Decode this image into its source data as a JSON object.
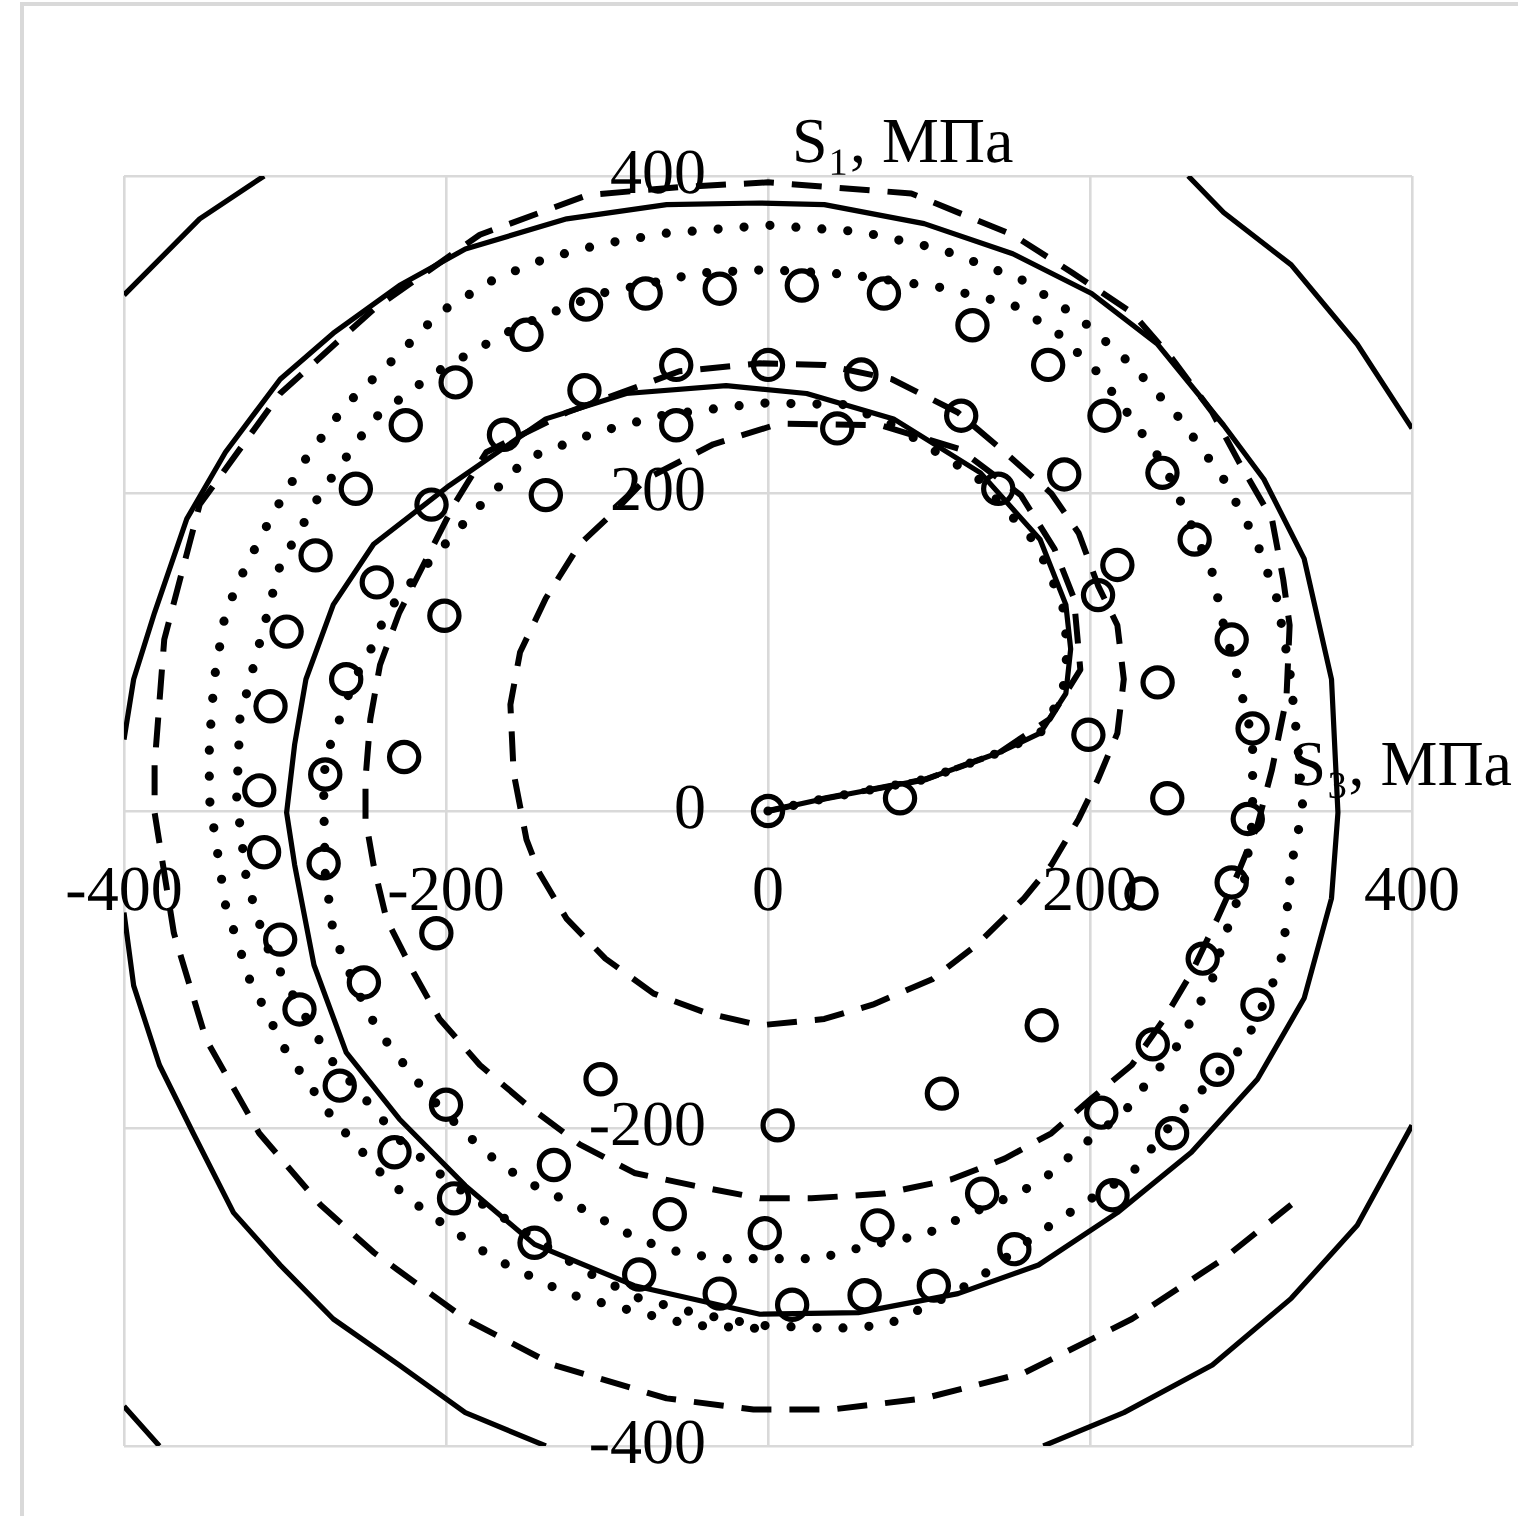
{
  "chart_data": {
    "type": "line",
    "xlabel": "S₃, МПа",
    "ylabel": "S₁, МПа",
    "xlim": [
      -400,
      400
    ],
    "ylim": [
      -400,
      400
    ],
    "xticks": [
      -400,
      -200,
      0,
      200,
      400
    ],
    "yticks": [
      -400,
      -200,
      0,
      200,
      400
    ],
    "grid": true,
    "series": [
      {
        "type": "line",
        "line_style": "solid",
        "marker": "none",
        "color": "#000000",
        "x": [
          0,
          36,
          98,
          144,
          169,
          185,
          188,
          185,
          169,
          132,
          78,
          24,
          -26,
          -88,
          -138,
          -198,
          -245,
          -270,
          -287,
          -294,
          -299,
          -294,
          -282,
          -262,
          -229,
          -188,
          -145,
          -83,
          -5,
          56,
          118,
          168,
          217,
          263,
          304,
          333,
          350,
          354,
          350,
          333,
          308,
          283,
          242,
          201,
          152,
          97,
          35,
          -5,
          -63,
          -125,
          -188,
          -229,
          -270,
          -303,
          -337,
          -361,
          -381,
          -394,
          -400,
          null,
          -400,
          -394,
          -378,
          -357,
          -332,
          -303,
          -270,
          -229,
          -188,
          -138,
          null,
          171,
          221,
          276,
          325,
          366,
          400,
          null,
          400,
          366,
          325,
          283,
          261,
          null,
          -313,
          -353,
          -400,
          null,
          -400,
          -378
        ],
        "values": [
          0,
          8,
          20,
          37,
          49,
          74,
          102,
          130,
          171,
          213,
          247,
          263,
          268,
          263,
          247,
          205,
          168,
          130,
          83,
          42,
          -1,
          -34,
          -97,
          -152,
          -194,
          -236,
          -273,
          -299,
          -317,
          -316,
          -304,
          -286,
          -253,
          -215,
          -169,
          -118,
          -55,
          -1,
          83,
          159,
          209,
          243,
          294,
          326,
          351,
          370,
          382,
          383,
          382,
          373,
          354,
          331,
          301,
          272,
          226,
          184,
          125,
          83,
          45,
          null,
          -64,
          -110,
          -160,
          -203,
          -253,
          -286,
          -320,
          -349,
          -379,
          -400,
          null,
          -400,
          -379,
          -349,
          -307,
          -261,
          -198,
          null,
          241,
          294,
          344,
          377,
          400,
          null,
          400,
          373,
          325,
          null,
          -375,
          -400
        ]
      },
      {
        "type": "line",
        "line_style": "dashed",
        "marker": "none",
        "color": "#000000",
        "x": [
          0,
          36,
          98,
          144,
          175,
          194,
          190,
          178,
          157,
          119,
          70,
          7,
          -34,
          -76,
          -96,
          -117,
          -138,
          -154,
          -160,
          -158,
          -150,
          -142,
          -125,
          -101,
          -71,
          -39,
          -5,
          35,
          65,
          102,
          130,
          159,
          176,
          193,
          205,
          217,
          221,
          217,
          205,
          193,
          176,
          147,
          118,
          77,
          35,
          -5,
          -55,
          -125,
          -175,
          -195,
          -212,
          -229,
          -241,
          -247,
          -250,
          -250,
          -245,
          -237,
          -220,
          -204,
          -179,
          -150,
          -117,
          -83,
          -46,
          -5,
          27,
          72,
          114,
          147,
          176,
          201,
          226,
          246,
          263,
          279,
          292,
          304,
          313,
          322,
          324,
          320,
          313,
          293,
          276,
          251,
          226,
          189,
          152,
          89,
          0,
          -55,
          -112,
          -179,
          -245,
          -303,
          -353,
          -375,
          -381,
          -381,
          -369,
          -349,
          -316,
          -278,
          -245,
          -188,
          -133,
          -63,
          -9,
          40,
          97,
          159,
          226,
          283,
          325
        ],
        "values": [
          0,
          8,
          20,
          37,
          58,
          89,
          134,
          165,
          199,
          228,
          243,
          244,
          231,
          209,
          188,
          168,
          134,
          100,
          67,
          24,
          -18,
          -39,
          -68,
          -93,
          -115,
          -127,
          -135,
          -131,
          -122,
          -106,
          -84,
          -55,
          -34,
          -5,
          20,
          49,
          83,
          117,
          142,
          175,
          200,
          226,
          251,
          272,
          281,
          282,
          277,
          251,
          226,
          193,
          159,
          125,
          92,
          58,
          20,
          -5,
          -34,
          -68,
          -102,
          -131,
          -160,
          -185,
          -210,
          -228,
          -236,
          -244,
          -244,
          -241,
          -232,
          -219,
          -203,
          -181,
          -160,
          -131,
          -102,
          -68,
          -39,
          -9,
          26,
          71,
          117,
          146,
          184,
          219,
          251,
          285,
          314,
          339,
          363,
          389,
          396,
          393,
          388,
          363,
          316,
          263,
          193,
          108,
          29,
          -1,
          -77,
          -144,
          -203,
          -248,
          -278,
          -320,
          -349,
          -370,
          -377,
          -377,
          -370,
          -354,
          -320,
          -282,
          -248
        ]
      },
      {
        "type": "line",
        "line_style": "dotted",
        "marker": "none",
        "color": "#000000",
        "x": [
          0,
          36,
          98,
          144,
          169,
          183,
          186,
          183,
          167,
          130,
          78,
          48,
          -5,
          -67,
          -108,
          -150,
          -183,
          -220,
          -237,
          -245,
          -257,
          -266,
          -275,
          -276,
          -275,
          -270,
          -262,
          -251,
          -241,
          -212,
          -188,
          -166,
          -145,
          -120,
          -80,
          -55,
          -30,
          -6,
          31,
          65,
          97,
          127,
          155,
          171,
          196,
          221,
          234,
          255,
          276,
          283,
          296,
          301,
          301,
          292,
          283,
          276,
          263,
          246,
          226,
          205,
          180,
          152,
          106,
          50,
          0,
          -42,
          -104,
          -154,
          -207,
          -245,
          -278,
          -303,
          -316,
          -328,
          -330,
          -324,
          -312,
          -294,
          -272,
          -253,
          -229,
          -195,
          -154,
          -117,
          -80,
          -42,
          -5,
          40,
          73,
          109,
          130,
          168,
          201,
          226,
          258,
          276,
          296,
          313,
          320,
          325,
          329,
          332,
          329,
          324,
          316,
          303,
          283,
          256,
          226,
          194,
          157,
          107,
          57,
          0,
          -63,
          -104,
          -138,
          -170,
          -204,
          -232,
          -262,
          -287,
          -307,
          -324,
          -337,
          -344,
          -347,
          -347,
          -337,
          -322,
          -299,
          -270,
          -237,
          -212,
          -170,
          -125,
          -80,
          -46,
          -5
        ],
        "values": [
          0,
          8,
          20,
          37,
          49,
          74,
          102,
          130,
          168,
          210,
          243,
          256,
          257,
          249,
          238,
          222,
          188,
          146,
          125,
          105,
          83,
          58,
          33,
          8,
          -39,
          -77,
          -97,
          -122,
          -140,
          -178,
          -203,
          -223,
          -236,
          -248,
          -270,
          -278,
          -282,
          -282,
          -282,
          -273,
          -267,
          -253,
          -241,
          -232,
          -210,
          -190,
          -173,
          -147,
          -106,
          -81,
          -43,
          -5,
          45,
          83,
          117,
          150,
          180,
          218,
          247,
          276,
          301,
          319,
          330,
          338,
          341,
          339,
          326,
          306,
          276,
          247,
          200,
          155,
          105,
          58,
          8,
          -43,
          -84,
          -118,
          -156,
          -178,
          -207,
          -236,
          -263,
          -288,
          -307,
          -317,
          -324,
          -326,
          -324,
          -307,
          -295,
          -266,
          -244,
          -228,
          -188,
          -169,
          -147,
          -110,
          -89,
          -34,
          -15,
          4,
          42,
          89,
          134,
          171,
          209,
          247,
          281,
          310,
          335,
          354,
          365,
          369,
          364,
          357,
          348,
          335,
          314,
          285,
          256,
          222,
          188,
          155,
          125,
          83,
          42,
          8,
          -59,
          -106,
          -152,
          -194,
          -232,
          -253,
          -282,
          -304,
          -316,
          -324,
          -326
        ]
      },
      {
        "type": "scatter",
        "marker": "circle",
        "color": "#000000",
        "x": [
          -30,
          -76,
          -113,
          -150,
          -194,
          -225,
          -256,
          -281,
          -299,
          -309,
          -316,
          -57,
          -114,
          -164,
          -209,
          -243,
          -262,
          -275,
          -57,
          -138,
          -201,
          -226,
          21,
          72,
          127,
          174,
          209,
          245,
          265,
          288,
          301,
          298,
          0,
          58,
          120,
          184,
          217,
          205,
          242,
          199,
          248,
          43,
          143,
          0,
          82,
          288,
          232,
          270,
          239,
          304,
          279,
          207,
          251,
          170,
          108,
          6,
          133,
          68,
          214,
          153,
          103,
          60,
          15,
          -2,
          -313,
          -276,
          -303,
          -206,
          -251,
          -291,
          -266,
          -200,
          -104,
          -232,
          -133,
          -195,
          -61,
          -145,
          -80,
          -30
        ],
        "values": [
          329,
          326,
          319,
          300,
          270,
          243,
          203,
          161,
          113,
          66,
          13,
          281,
          265,
          237,
          193,
          144,
          83,
          23,
          243,
          199,
          123,
          34,
          331,
          326,
          306,
          281,
          249,
          213,
          171,
          108,
          52,
          -5,
          281,
          275,
          249,
          212,
          155,
          136,
          81,
          48,
          8,
          241,
          203,
          0,
          8,
          -45,
          -52,
          -93,
          -147,
          -122,
          -163,
          -190,
          -203,
          -135,
          -178,
          -198,
          -241,
          -261,
          -242,
          -276,
          -299,
          -305,
          -311,
          -266,
          -26,
          -33,
          -81,
          -77,
          -108,
          -125,
          -173,
          -185,
          -169,
          -215,
          -223,
          -244,
          -254,
          -272,
          -292,
          -304
        ]
      }
    ]
  }
}
